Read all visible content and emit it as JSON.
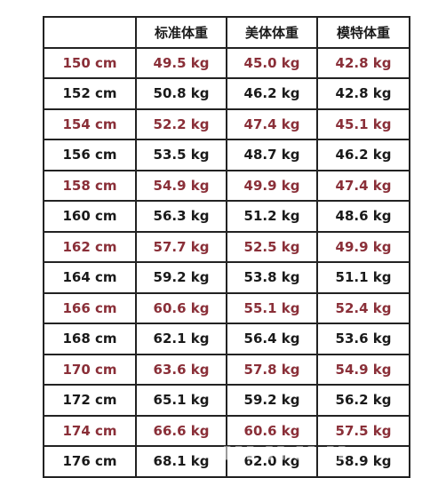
{
  "colors": {
    "red_text": "#8a2f38",
    "dark_text": "#1a1a1a",
    "border": "#222222"
  },
  "table": {
    "headers": [
      "",
      "标准体重",
      "美体体重",
      "模特体重"
    ],
    "rows": [
      {
        "height": "150 cm",
        "standard": "49.5 kg",
        "beauty": "45.0 kg",
        "model": "42.8 kg",
        "tone": "red"
      },
      {
        "height": "152 cm",
        "standard": "50.8 kg",
        "beauty": "46.2 kg",
        "model": "42.8 kg",
        "tone": "dark"
      },
      {
        "height": "154 cm",
        "standard": "52.2 kg",
        "beauty": "47.4 kg",
        "model": "45.1 kg",
        "tone": "red"
      },
      {
        "height": "156 cm",
        "standard": "53.5 kg",
        "beauty": "48.7 kg",
        "model": "46.2 kg",
        "tone": "dark"
      },
      {
        "height": "158 cm",
        "standard": "54.9 kg",
        "beauty": "49.9 kg",
        "model": "47.4 kg",
        "tone": "red"
      },
      {
        "height": "160 cm",
        "standard": "56.3 kg",
        "beauty": "51.2 kg",
        "model": "48.6 kg",
        "tone": "dark"
      },
      {
        "height": "162 cm",
        "standard": "57.7 kg",
        "beauty": "52.5 kg",
        "model": "49.9 kg",
        "tone": "red"
      },
      {
        "height": "164 cm",
        "standard": "59.2 kg",
        "beauty": "53.8 kg",
        "model": "51.1 kg",
        "tone": "dark"
      },
      {
        "height": "166 cm",
        "standard": "60.6 kg",
        "beauty": "55.1 kg",
        "model": "52.4 kg",
        "tone": "red"
      },
      {
        "height": "168 cm",
        "standard": "62.1 kg",
        "beauty": "56.4 kg",
        "model": "53.6 kg",
        "tone": "dark"
      },
      {
        "height": "170 cm",
        "standard": "63.6 kg",
        "beauty": "57.8 kg",
        "model": "54.9 kg",
        "tone": "red"
      },
      {
        "height": "172 cm",
        "standard": "65.1 kg",
        "beauty": "59.2 kg",
        "model": "56.2 kg",
        "tone": "dark"
      },
      {
        "height": "174 cm",
        "standard": "66.6 kg",
        "beauty": "60.6 kg",
        "model": "57.5 kg",
        "tone": "red"
      },
      {
        "height": "176 cm",
        "standard": "68.1 kg",
        "beauty": "62.0 kg",
        "model": "58.9 kg",
        "tone": "dark"
      }
    ]
  }
}
